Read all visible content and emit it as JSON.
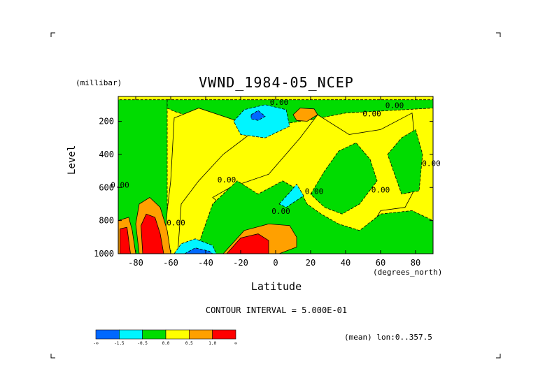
{
  "chart_data": {
    "type": "heatmap",
    "title": "VWND_1984-05_NCEP",
    "xlabel": "Latitude",
    "ylabel": "Level",
    "x_unit": "(degrees_north)",
    "y_unit": "(millibar)",
    "xlim": [
      -90,
      90
    ],
    "ylim": [
      1000,
      50
    ],
    "y_reversed": true,
    "x_ticks": [
      -80,
      -60,
      -40,
      -20,
      0,
      20,
      40,
      60,
      80
    ],
    "y_ticks": [
      200,
      400,
      600,
      800,
      1000
    ],
    "contour_interval_text": "CONTOUR INTERVAL = 5.000E-01",
    "footnote": "(mean) lon:0..357.5",
    "contour_labels": [
      {
        "text": "0.00",
        "x": 2,
        "y": 100
      },
      {
        "text": "0.00",
        "x": 55,
        "y": 170
      },
      {
        "text": "0.00",
        "x": 68,
        "y": 120
      },
      {
        "text": "0.00",
        "x": 89,
        "y": 470
      },
      {
        "text": "0.00",
        "x": -28,
        "y": 570
      },
      {
        "text": "0.00",
        "x": -89,
        "y": 600
      },
      {
        "text": "0.00",
        "x": 22,
        "y": 640
      },
      {
        "text": "0.00",
        "x": 60,
        "y": 630
      },
      {
        "text": "0.00",
        "x": 3,
        "y": 760
      },
      {
        "text": "0.00",
        "x": -57,
        "y": 830
      }
    ],
    "regions": [
      {
        "name": "green west",
        "value": -0.5,
        "pts": [
          [
            -90,
            1000
          ],
          [
            -90,
            70
          ],
          [
            -62,
            70
          ],
          [
            -62,
            1000
          ]
        ]
      },
      {
        "name": "green top",
        "value": -0.5,
        "pts": [
          [
            -62,
            70
          ],
          [
            90,
            70
          ],
          [
            90,
            120
          ],
          [
            40,
            150
          ],
          [
            20,
            190
          ],
          [
            -10,
            240
          ],
          [
            -40,
            200
          ],
          [
            -58,
            140
          ],
          [
            -62,
            120
          ]
        ]
      },
      {
        "name": "yellow belt",
        "value": 0.0,
        "pts": [
          [
            -64,
            1000
          ],
          [
            -62,
            740
          ],
          [
            -60,
            560
          ],
          [
            -58,
            180
          ],
          [
            -44,
            120
          ],
          [
            -10,
            240
          ],
          [
            -30,
            400
          ],
          [
            -44,
            560
          ],
          [
            -54,
            700
          ],
          [
            -56,
            1000
          ]
        ]
      },
      {
        "name": "yellow center",
        "value": 0.0,
        "pts": [
          [
            -26,
            600
          ],
          [
            -4,
            520
          ],
          [
            14,
            300
          ],
          [
            24,
            160
          ],
          [
            42,
            280
          ],
          [
            60,
            250
          ],
          [
            78,
            150
          ],
          [
            82,
            560
          ],
          [
            74,
            720
          ],
          [
            60,
            740
          ],
          [
            48,
            960
          ],
          [
            30,
            1000
          ],
          [
            10,
            860
          ],
          [
            -20,
            800
          ],
          [
            -36,
            660
          ]
        ]
      },
      {
        "name": "green mid",
        "value": -0.5,
        "pts": [
          [
            20,
            640
          ],
          [
            28,
            500
          ],
          [
            36,
            380
          ],
          [
            46,
            330
          ],
          [
            54,
            430
          ],
          [
            58,
            560
          ],
          [
            48,
            700
          ],
          [
            38,
            760
          ],
          [
            28,
            720
          ]
        ]
      },
      {
        "name": "green east",
        "value": -0.5,
        "pts": [
          [
            64,
            400
          ],
          [
            72,
            300
          ],
          [
            80,
            250
          ],
          [
            84,
            400
          ],
          [
            82,
            620
          ],
          [
            72,
            640
          ]
        ]
      },
      {
        "name": "green lower",
        "value": -0.5,
        "pts": [
          [
            -46,
            1000
          ],
          [
            -36,
            700
          ],
          [
            -22,
            560
          ],
          [
            -10,
            640
          ],
          [
            4,
            560
          ],
          [
            14,
            620
          ],
          [
            18,
            700
          ],
          [
            26,
            760
          ],
          [
            36,
            820
          ],
          [
            48,
            860
          ],
          [
            60,
            760
          ],
          [
            78,
            740
          ],
          [
            90,
            800
          ],
          [
            90,
            1000
          ]
        ]
      },
      {
        "name": "cyan mid",
        "value": -1.0,
        "pts": [
          [
            2,
            700
          ],
          [
            8,
            630
          ],
          [
            12,
            580
          ],
          [
            16,
            650
          ],
          [
            6,
            720
          ]
        ]
      },
      {
        "name": "cyan upper",
        "value": -1.0,
        "pts": [
          [
            -24,
            200
          ],
          [
            -18,
            130
          ],
          [
            -6,
            100
          ],
          [
            6,
            130
          ],
          [
            8,
            230
          ],
          [
            -6,
            300
          ],
          [
            -20,
            280
          ]
        ]
      },
      {
        "name": "blue upper",
        "value": -1.5,
        "pts": [
          [
            -14,
            160
          ],
          [
            -10,
            135
          ],
          [
            -6,
            170
          ],
          [
            -10,
            195
          ],
          [
            -14,
            185
          ]
        ]
      },
      {
        "name": "cyan lower",
        "value": -1.0,
        "pts": [
          [
            -58,
            1000
          ],
          [
            -54,
            940
          ],
          [
            -46,
            910
          ],
          [
            -36,
            950
          ],
          [
            -34,
            1000
          ]
        ]
      },
      {
        "name": "blue lower",
        "value": -1.5,
        "pts": [
          [
            -52,
            1000
          ],
          [
            -46,
            965
          ],
          [
            -38,
            985
          ],
          [
            -36,
            1000
          ]
        ]
      },
      {
        "name": "orange upper",
        "value": 0.5,
        "pts": [
          [
            10,
            160
          ],
          [
            14,
            120
          ],
          [
            22,
            125
          ],
          [
            24,
            160
          ],
          [
            18,
            200
          ],
          [
            12,
            195
          ]
        ]
      },
      {
        "name": "orange lower",
        "value": 0.5,
        "pts": [
          [
            -30,
            1000
          ],
          [
            -18,
            860
          ],
          [
            -4,
            820
          ],
          [
            8,
            830
          ],
          [
            12,
            900
          ],
          [
            12,
            960
          ],
          [
            2,
            1000
          ]
        ]
      },
      {
        "name": "red lower",
        "value": 1.0,
        "pts": [
          [
            -28,
            1000
          ],
          [
            -20,
            905
          ],
          [
            -10,
            880
          ],
          [
            -4,
            920
          ],
          [
            -4,
            1000
          ]
        ]
      },
      {
        "name": "orange sw",
        "value": 0.5,
        "pts": [
          [
            -90,
            1000
          ],
          [
            -90,
            800
          ],
          [
            -84,
            780
          ],
          [
            -82,
            860
          ],
          [
            -80,
            1000
          ]
        ]
      },
      {
        "name": "red sw",
        "value": 1.0,
        "pts": [
          [
            -89,
            1000
          ],
          [
            -89,
            850
          ],
          [
            -85,
            840
          ],
          [
            -83,
            1000
          ]
        ]
      },
      {
        "name": "orange s",
        "value": 0.5,
        "pts": [
          [
            -78,
            1000
          ],
          [
            -80,
            820
          ],
          [
            -78,
            700
          ],
          [
            -72,
            660
          ],
          [
            -66,
            720
          ],
          [
            -62,
            860
          ],
          [
            -60,
            1000
          ]
        ]
      },
      {
        "name": "red s",
        "value": 1.0,
        "pts": [
          [
            -76,
            1000
          ],
          [
            -77,
            830
          ],
          [
            -74,
            760
          ],
          [
            -69,
            780
          ],
          [
            -66,
            880
          ],
          [
            -64,
            1000
          ]
        ]
      }
    ],
    "colorbar": {
      "colors": [
        "#0068ff",
        "#00f5ff",
        "#00dc00",
        "#ffff00",
        "#ffa000",
        "#ff0000"
      ],
      "labels": [
        "-∞",
        "-1.5",
        "-0.5",
        "0.0",
        "0.5",
        "1.0",
        "∞"
      ]
    }
  }
}
